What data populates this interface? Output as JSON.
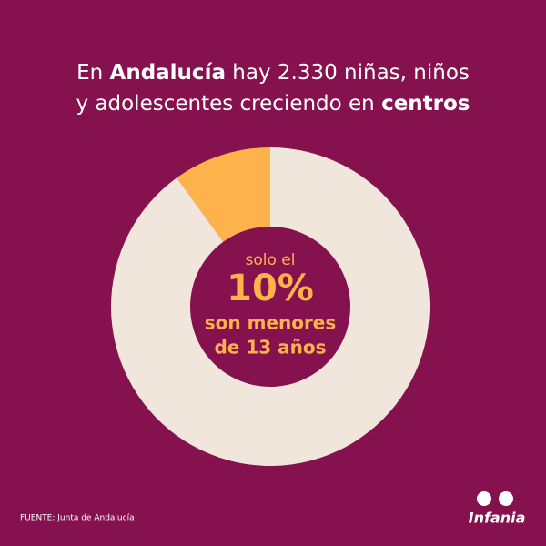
{
  "chart_data": {
    "type": "donut",
    "title": [
      [
        "En ",
        "Andalucía",
        " hay 2.330 niñas, niños"
      ],
      [
        "y adolescentes creciendo en ",
        "centros"
      ]
    ],
    "categories": [
      null,
      null
    ],
    "values": [
      10,
      90
    ],
    "value_labels": [
      "10%",
      null
    ],
    "colors": [
      "#fdb24b",
      "#f0e6dc"
    ],
    "annotations": [
      "solo el",
      "son menores",
      "de 13 años"
    ],
    "source": "FUENTE: Junta de Andalucía",
    "logo": "Infania"
  }
}
